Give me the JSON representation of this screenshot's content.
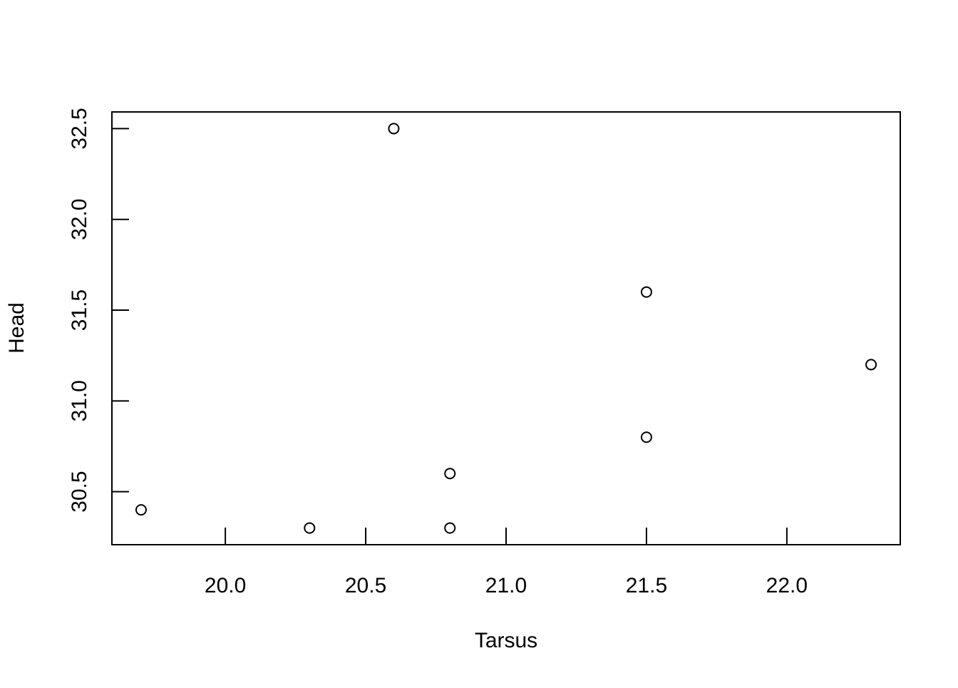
{
  "chart_data": {
    "type": "scatter",
    "x_label": "Tarsus",
    "y_label": "Head",
    "x": [
      19.7,
      20.3,
      20.6,
      20.8,
      20.8,
      21.5,
      21.5,
      22.3
    ],
    "values": [
      30.4,
      30.3,
      32.5,
      30.6,
      30.3,
      31.6,
      30.8,
      31.2
    ],
    "color": "#000000",
    "xlim": [
      19.596,
      22.404
    ],
    "ylim": [
      30.208,
      32.592
    ],
    "xticks": [
      {
        "value": 20,
        "label": "20.0"
      },
      20.5,
      {
        "value": 21,
        "label": "21.0"
      },
      21.5,
      {
        "value": 22,
        "label": "22.0"
      }
    ],
    "yticks": [
      30.5,
      {
        "value": 31,
        "label": "31.0"
      },
      31.5,
      {
        "value": 32,
        "label": "32.0"
      },
      32.5
    ],
    "grid": false
  }
}
